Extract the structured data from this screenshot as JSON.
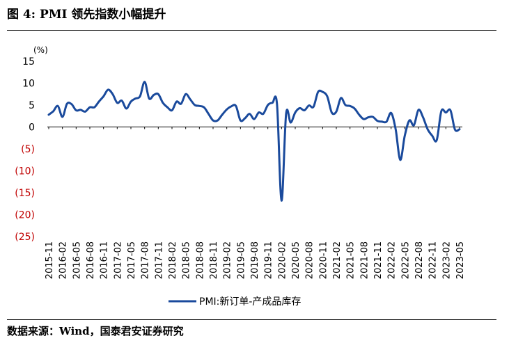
{
  "header": {
    "title": "图 4: PMI 领先指数小幅提升"
  },
  "footer": {
    "source": "数据来源：Wind，国泰君安证券研究"
  },
  "colors": {
    "line": "#1a4a9c",
    "negative_tick": "#c00000",
    "positive_tick": "#000000"
  },
  "chart_data": {
    "type": "line",
    "title": "",
    "xlabel": "",
    "ylabel": "(%)",
    "ylim": [
      -25,
      15
    ],
    "yticks": [
      15,
      10,
      5,
      0,
      -5,
      -10,
      -15,
      -20,
      -25
    ],
    "ytick_labels": [
      "15",
      "10",
      "5",
      "0",
      "(5)",
      "(10)",
      "(15)",
      "(20)",
      "(25)"
    ],
    "x_tick_labels": [
      "2015-11",
      "2016-02",
      "2016-05",
      "2016-08",
      "2016-11",
      "2017-02",
      "2017-05",
      "2017-08",
      "2017-11",
      "2018-02",
      "2018-05",
      "2018-08",
      "2018-11",
      "2019-02",
      "2019-05",
      "2019-08",
      "2019-11",
      "2020-02",
      "2020-05",
      "2020-08",
      "2020-11",
      "2021-02",
      "2021-05",
      "2021-08",
      "2021-11",
      "2022-02",
      "2022-05",
      "2022-08",
      "2022-11",
      "2023-02",
      "2023-05"
    ],
    "grid": false,
    "legend_position": "bottom",
    "series": [
      {
        "name": "PMI:新订单-产成品库存",
        "x": [
          "2015-11",
          "2015-12",
          "2016-01",
          "2016-02",
          "2016-03",
          "2016-04",
          "2016-05",
          "2016-06",
          "2016-07",
          "2016-08",
          "2016-09",
          "2016-10",
          "2016-11",
          "2016-12",
          "2017-01",
          "2017-02",
          "2017-03",
          "2017-04",
          "2017-05",
          "2017-06",
          "2017-07",
          "2017-08",
          "2017-09",
          "2017-10",
          "2017-11",
          "2017-12",
          "2018-01",
          "2018-02",
          "2018-03",
          "2018-04",
          "2018-05",
          "2018-06",
          "2018-07",
          "2018-08",
          "2018-09",
          "2018-10",
          "2018-11",
          "2018-12",
          "2019-01",
          "2019-02",
          "2019-03",
          "2019-04",
          "2019-05",
          "2019-06",
          "2019-07",
          "2019-08",
          "2019-09",
          "2019-10",
          "2019-11",
          "2019-12",
          "2020-01",
          "2020-02",
          "2020-03",
          "2020-04",
          "2020-05",
          "2020-06",
          "2020-07",
          "2020-08",
          "2020-09",
          "2020-10",
          "2020-11",
          "2020-12",
          "2021-01",
          "2021-02",
          "2021-03",
          "2021-04",
          "2021-05",
          "2021-06",
          "2021-07",
          "2021-08",
          "2021-09",
          "2021-10",
          "2021-11",
          "2021-12",
          "2022-01",
          "2022-02",
          "2022-03",
          "2022-04",
          "2022-05",
          "2022-06",
          "2022-07",
          "2022-08",
          "2022-09",
          "2022-10",
          "2022-11",
          "2022-12",
          "2023-01",
          "2023-02",
          "2023-03",
          "2023-04",
          "2023-05"
        ],
        "values": [
          2.8,
          3.6,
          4.8,
          2.3,
          5.3,
          5.2,
          3.8,
          3.9,
          3.5,
          4.5,
          4.5,
          5.8,
          7.0,
          8.5,
          7.5,
          5.5,
          6.0,
          4.2,
          5.8,
          6.5,
          7.0,
          10.3,
          6.5,
          7.3,
          7.5,
          5.5,
          4.5,
          3.8,
          5.8,
          5.3,
          7.5,
          6.3,
          5.0,
          4.8,
          4.5,
          3.0,
          1.5,
          1.5,
          2.8,
          4.0,
          4.7,
          4.8,
          1.5,
          2.0,
          3.0,
          1.8,
          3.3,
          3.0,
          5.0,
          5.5,
          5.2,
          -16.8,
          3.0,
          1.0,
          3.3,
          4.3,
          3.8,
          4.9,
          4.6,
          8.0,
          8.0,
          7.0,
          3.3,
          3.5,
          6.6,
          5.0,
          4.8,
          4.2,
          2.8,
          1.8,
          2.2,
          2.3,
          1.4,
          1.2,
          1.2,
          3.2,
          -0.5,
          -7.5,
          -2.0,
          1.5,
          0.4,
          3.9,
          2.2,
          -0.5,
          -2.0,
          -3.0,
          3.6,
          3.3,
          3.8,
          -0.6,
          -0.5
        ]
      }
    ]
  }
}
